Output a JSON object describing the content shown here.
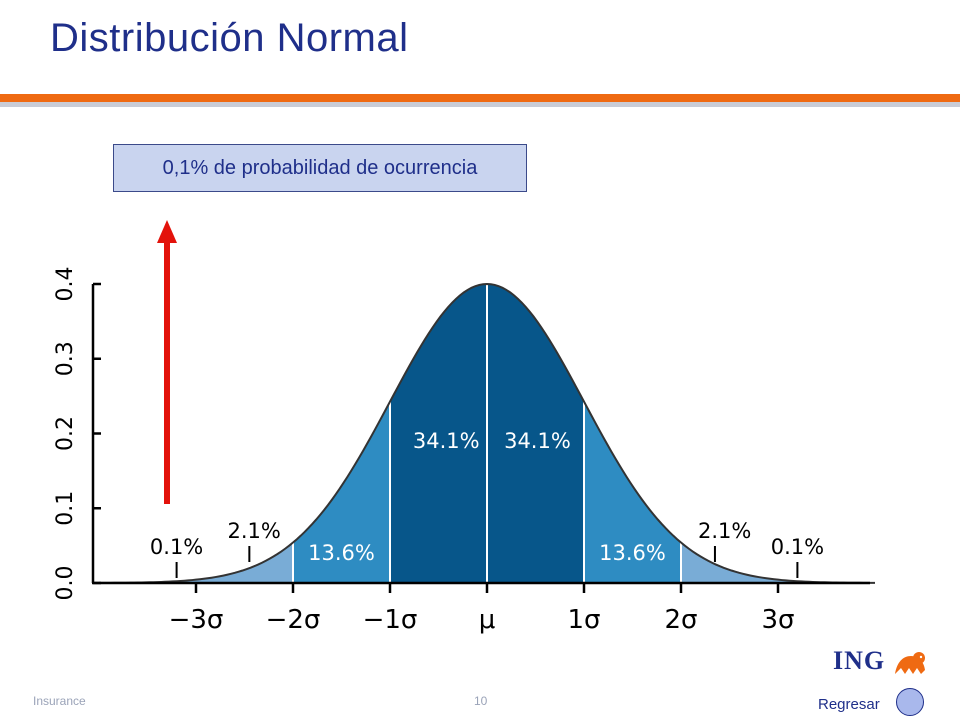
{
  "slide": {
    "title": "Distribución Normal",
    "callout": "0,1% de probabilidad de ocurrencia",
    "footer_left": "Insurance",
    "page_number": "10",
    "back_label": "Regresar",
    "logo_text": "ING"
  },
  "colors": {
    "title": "#1f2f8a",
    "orange_rule": "#ef6a12",
    "arrow": "#e3120b",
    "band_dark": "#07568a",
    "band_mid": "#2e8cc2",
    "band_light": "#79acd6",
    "curve": "#333333"
  },
  "chart_data": {
    "type": "area",
    "distribution": "normal",
    "mean": 0,
    "sd": 1,
    "xlim": [
      -4,
      4
    ],
    "ylim": [
      0,
      0.4
    ],
    "y_ticks": [
      "0.0",
      "0.1",
      "0.2",
      "0.3",
      "0.4"
    ],
    "x_ticks": [
      {
        "value": -3,
        "label": "−3σ"
      },
      {
        "value": -2,
        "label": "−2σ"
      },
      {
        "value": -1,
        "label": "−1σ"
      },
      {
        "value": 0,
        "label": "μ"
      },
      {
        "value": 1,
        "label": "1σ"
      },
      {
        "value": 2,
        "label": "2σ"
      },
      {
        "value": 3,
        "label": "3σ"
      }
    ],
    "bands": [
      {
        "from": -3,
        "to": -2,
        "label": "2.1%",
        "color": "#79acd6"
      },
      {
        "from": -2,
        "to": -1,
        "label": "13.6%",
        "color": "#2e8cc2"
      },
      {
        "from": -1,
        "to": 0,
        "label": "34.1%",
        "color": "#07568a"
      },
      {
        "from": 0,
        "to": 1,
        "label": "34.1%",
        "color": "#07568a"
      },
      {
        "from": 1,
        "to": 2,
        "label": "13.6%",
        "color": "#2e8cc2"
      },
      {
        "from": 2,
        "to": 3,
        "label": "2.1%",
        "color": "#79acd6"
      }
    ],
    "tail_labels": [
      {
        "side": "left",
        "label": "0.1%"
      },
      {
        "side": "right",
        "label": "0.1%"
      }
    ]
  }
}
